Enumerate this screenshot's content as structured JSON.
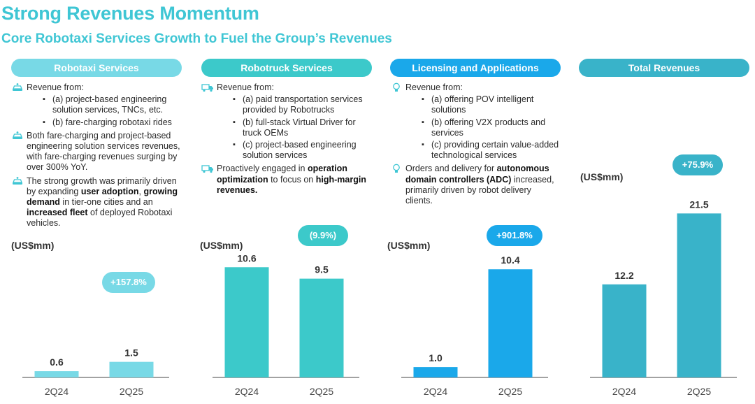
{
  "page": {
    "title": "Strong Revenues Momentum",
    "subtitle": "Core Robotaxi Services Growth to Fuel the Group’s Revenues"
  },
  "colors": {
    "title": "#3fc6d4",
    "robotaxi": "#78d9e6",
    "robotruck": "#3cc9ca",
    "licensing": "#1aa8ea",
    "total": "#39b3c9"
  },
  "columns": [
    {
      "header": "Robotaxi Services",
      "paragraphs": [
        {
          "icon": "car-icon",
          "parts": [
            {
              "t": "Revenue from:",
              "b": false
            }
          ],
          "items": [
            "(a) project-based engineering solution services, TNCs, etc.",
            "(b) fare-charging robotaxi rides"
          ]
        },
        {
          "icon": "car-icon",
          "parts": [
            {
              "t": "Both fare-charging and project-based engineering solution services revenues, with fare-charging revenues surging by over 300% YoY.",
              "b": false
            }
          ],
          "items": []
        },
        {
          "icon": "car-icon",
          "parts": [
            {
              "t": "The strong growth was primarily driven by expanding ",
              "b": false
            },
            {
              "t": "user adoption",
              "b": true
            },
            {
              "t": ", ",
              "b": false
            },
            {
              "t": "growing demand",
              "b": true
            },
            {
              "t": " in tier-one cities and an ",
              "b": false
            },
            {
              "t": "increased fleet",
              "b": true
            },
            {
              "t": " of deployed Robotaxi vehicles.",
              "b": false
            }
          ],
          "items": []
        }
      ]
    },
    {
      "header": "Robotruck Services",
      "paragraphs": [
        {
          "icon": "truck-icon",
          "parts": [
            {
              "t": "Revenue from:",
              "b": false
            }
          ],
          "items": [
            "(a) paid transportation services provided by Robotrucks",
            "(b) full-stack Virtual Driver for truck OEMs",
            "(c) project-based engineering solution services"
          ]
        },
        {
          "icon": "truck-icon",
          "parts": [
            {
              "t": "Proactively engaged in ",
              "b": false
            },
            {
              "t": "operation optimization",
              "b": true
            },
            {
              "t": " to focus on ",
              "b": false
            },
            {
              "t": "high-margin revenues.",
              "b": true
            }
          ],
          "items": []
        }
      ]
    },
    {
      "header": "Licensing and Applications",
      "paragraphs": [
        {
          "icon": "lightbulb-icon",
          "parts": [
            {
              "t": "Revenue from:",
              "b": false
            }
          ],
          "items": [
            "(a) offering POV intelligent solutions",
            "(b) offering V2X products and services",
            "(c) providing certain value-added technological services"
          ]
        },
        {
          "icon": "lightbulb-icon",
          "parts": [
            {
              "t": "Orders and delivery for ",
              "b": false
            },
            {
              "t": "autonomous domain controllers (ADC)",
              "b": true
            },
            {
              "t": " increased, primarily driven by robot delivery clients.",
              "b": false
            }
          ],
          "items": []
        }
      ]
    },
    {
      "header": "Total Revenues",
      "paragraphs": []
    }
  ],
  "chart_data": [
    {
      "type": "bar",
      "title": "Robotaxi Services",
      "ylabel": "(US$mm)",
      "categories": [
        "2Q24",
        "2Q25"
      ],
      "values": [
        0.6,
        1.5
      ],
      "value_labels": [
        "0.6",
        "1.5"
      ],
      "change": "+157.8%",
      "ylim": [
        0,
        12.5
      ],
      "grid": false
    },
    {
      "type": "bar",
      "title": "Robotruck Services",
      "ylabel": "(US$mm)",
      "categories": [
        "2Q24",
        "2Q25"
      ],
      "values": [
        10.6,
        9.5
      ],
      "value_labels": [
        "10.6",
        "9.5"
      ],
      "change": "(9.9%)",
      "ylim": [
        0,
        12.5
      ],
      "grid": false
    },
    {
      "type": "bar",
      "title": "Licensing and Applications",
      "ylabel": "(US$mm)",
      "categories": [
        "2Q24",
        "2Q25"
      ],
      "values": [
        1.0,
        10.4
      ],
      "value_labels": [
        "1.0",
        "10.4"
      ],
      "change": "+901.8%",
      "ylim": [
        0,
        12.5
      ],
      "grid": false
    },
    {
      "type": "bar",
      "title": "Total Revenues",
      "ylabel": "(US$mm)",
      "categories": [
        "2Q24",
        "2Q25"
      ],
      "values": [
        12.2,
        21.5
      ],
      "value_labels": [
        "12.2",
        "21.5"
      ],
      "change": "+75.9%",
      "ylim": [
        0,
        23.0
      ],
      "grid": false
    }
  ]
}
